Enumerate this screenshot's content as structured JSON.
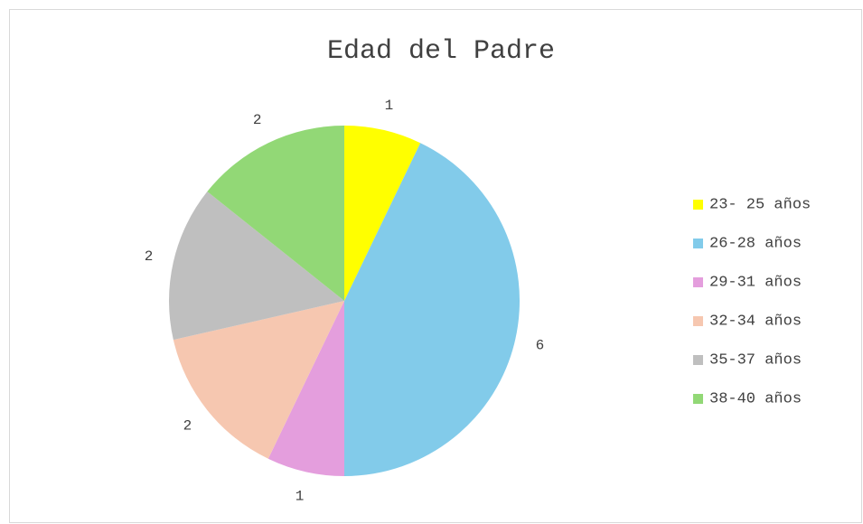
{
  "chart_data": {
    "type": "pie",
    "title": "Edad del Padre",
    "categories": [
      "23- 25 años",
      "26-28 años",
      "29-31 años",
      "32-34 años",
      "35-37 años",
      "38-40 años"
    ],
    "values": [
      1,
      6,
      1,
      2,
      2,
      2
    ],
    "colors": [
      "#ffff00",
      "#82cbea",
      "#e49edd",
      "#f6c7b0",
      "#bfbfbf",
      "#92d876"
    ],
    "legend": "right"
  }
}
